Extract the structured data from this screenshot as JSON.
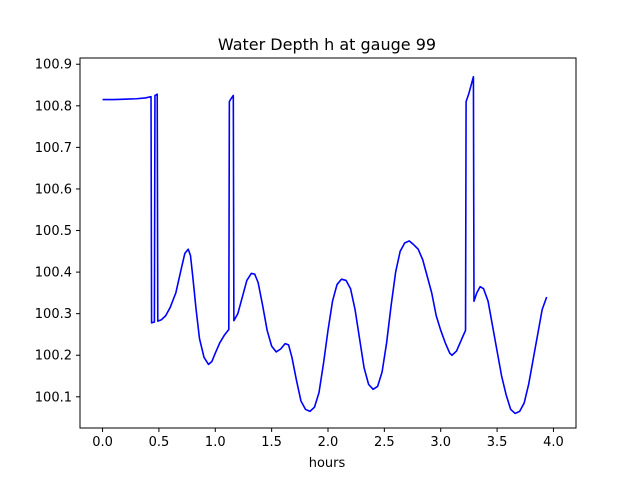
{
  "chart_data": {
    "type": "line",
    "title": "Water Depth h at gauge 99",
    "xlabel": "hours",
    "ylabel": "",
    "xlim": [
      -0.2,
      4.2
    ],
    "ylim": [
      100.025,
      100.915
    ],
    "x_ticks": [
      0.0,
      0.5,
      1.0,
      1.5,
      2.0,
      2.5,
      3.0,
      3.5,
      4.0
    ],
    "x_tick_labels": [
      "0.0",
      "0.5",
      "1.0",
      "1.5",
      "2.0",
      "2.5",
      "3.0",
      "3.5",
      "4.0"
    ],
    "y_ticks": [
      100.1,
      100.2,
      100.3,
      100.4,
      100.5,
      100.6,
      100.7,
      100.8,
      100.9
    ],
    "y_tick_labels": [
      "100.1",
      "100.2",
      "100.3",
      "100.4",
      "100.5",
      "100.6",
      "100.7",
      "100.8",
      "100.9"
    ],
    "grid": false,
    "legend": "none",
    "series": [
      {
        "color": "#0000ff",
        "points": [
          [
            0.0,
            100.815
          ],
          [
            0.1,
            100.815
          ],
          [
            0.2,
            100.816
          ],
          [
            0.3,
            100.817
          ],
          [
            0.38,
            100.819
          ],
          [
            0.43,
            100.822
          ],
          [
            0.435,
            100.278
          ],
          [
            0.46,
            100.28
          ],
          [
            0.465,
            100.825
          ],
          [
            0.475,
            100.826
          ],
          [
            0.485,
            100.828
          ],
          [
            0.49,
            100.282
          ],
          [
            0.52,
            100.285
          ],
          [
            0.56,
            100.295
          ],
          [
            0.6,
            100.315
          ],
          [
            0.65,
            100.35
          ],
          [
            0.7,
            100.41
          ],
          [
            0.73,
            100.445
          ],
          [
            0.76,
            100.455
          ],
          [
            0.78,
            100.44
          ],
          [
            0.8,
            100.39
          ],
          [
            0.83,
            100.31
          ],
          [
            0.86,
            100.24
          ],
          [
            0.9,
            100.195
          ],
          [
            0.94,
            100.178
          ],
          [
            0.97,
            100.185
          ],
          [
            1.0,
            100.205
          ],
          [
            1.04,
            100.23
          ],
          [
            1.08,
            100.248
          ],
          [
            1.12,
            100.262
          ],
          [
            1.125,
            100.81
          ],
          [
            1.135,
            100.815
          ],
          [
            1.16,
            100.825
          ],
          [
            1.165,
            100.283
          ],
          [
            1.2,
            100.3
          ],
          [
            1.24,
            100.34
          ],
          [
            1.28,
            100.38
          ],
          [
            1.32,
            100.397
          ],
          [
            1.35,
            100.395
          ],
          [
            1.38,
            100.375
          ],
          [
            1.42,
            100.32
          ],
          [
            1.46,
            100.26
          ],
          [
            1.5,
            100.222
          ],
          [
            1.54,
            100.208
          ],
          [
            1.58,
            100.215
          ],
          [
            1.62,
            100.228
          ],
          [
            1.65,
            100.225
          ],
          [
            1.68,
            100.195
          ],
          [
            1.72,
            100.14
          ],
          [
            1.76,
            100.09
          ],
          [
            1.8,
            100.07
          ],
          [
            1.84,
            100.065
          ],
          [
            1.88,
            100.075
          ],
          [
            1.92,
            100.11
          ],
          [
            1.96,
            100.18
          ],
          [
            2.0,
            100.26
          ],
          [
            2.04,
            100.33
          ],
          [
            2.08,
            100.37
          ],
          [
            2.12,
            100.383
          ],
          [
            2.16,
            100.38
          ],
          [
            2.2,
            100.36
          ],
          [
            2.24,
            100.31
          ],
          [
            2.28,
            100.24
          ],
          [
            2.32,
            100.17
          ],
          [
            2.36,
            100.13
          ],
          [
            2.4,
            100.118
          ],
          [
            2.44,
            100.125
          ],
          [
            2.48,
            100.16
          ],
          [
            2.52,
            100.23
          ],
          [
            2.56,
            100.32
          ],
          [
            2.6,
            100.4
          ],
          [
            2.64,
            100.45
          ],
          [
            2.68,
            100.47
          ],
          [
            2.72,
            100.475
          ],
          [
            2.76,
            100.466
          ],
          [
            2.8,
            100.455
          ],
          [
            2.84,
            100.43
          ],
          [
            2.88,
            100.39
          ],
          [
            2.92,
            100.35
          ],
          [
            2.96,
            100.295
          ],
          [
            3.0,
            100.26
          ],
          [
            3.04,
            100.23
          ],
          [
            3.08,
            100.205
          ],
          [
            3.1,
            100.2
          ],
          [
            3.14,
            100.21
          ],
          [
            3.18,
            100.235
          ],
          [
            3.22,
            100.26
          ],
          [
            3.225,
            100.81
          ],
          [
            3.25,
            100.83
          ],
          [
            3.275,
            100.855
          ],
          [
            3.29,
            100.87
          ],
          [
            3.295,
            100.33
          ],
          [
            3.32,
            100.35
          ],
          [
            3.35,
            100.365
          ],
          [
            3.38,
            100.36
          ],
          [
            3.42,
            100.33
          ],
          [
            3.46,
            100.27
          ],
          [
            3.5,
            100.21
          ],
          [
            3.54,
            100.15
          ],
          [
            3.58,
            100.105
          ],
          [
            3.62,
            100.07
          ],
          [
            3.66,
            100.06
          ],
          [
            3.7,
            100.065
          ],
          [
            3.74,
            100.085
          ],
          [
            3.78,
            100.13
          ],
          [
            3.82,
            100.19
          ],
          [
            3.86,
            100.25
          ],
          [
            3.9,
            100.31
          ],
          [
            3.94,
            100.34
          ]
        ]
      }
    ]
  }
}
